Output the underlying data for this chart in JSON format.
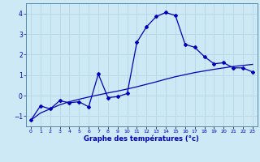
{
  "xlabel": "Graphe des températures (°c)",
  "hours": [
    0,
    1,
    2,
    3,
    4,
    5,
    6,
    7,
    8,
    9,
    10,
    11,
    12,
    13,
    14,
    15,
    16,
    17,
    18,
    19,
    20,
    21,
    22,
    23
  ],
  "temp_line": [
    -1.2,
    -0.5,
    -0.65,
    -0.25,
    -0.35,
    -0.3,
    -0.55,
    1.05,
    -0.1,
    -0.05,
    0.1,
    2.6,
    3.35,
    3.85,
    4.05,
    3.9,
    2.5,
    2.35,
    1.9,
    1.55,
    1.6,
    1.35,
    1.35,
    1.15
  ],
  "trend_line": [
    -1.2,
    -0.85,
    -0.65,
    -0.45,
    -0.3,
    -0.18,
    -0.07,
    0.03,
    0.13,
    0.22,
    0.32,
    0.43,
    0.55,
    0.67,
    0.8,
    0.92,
    1.02,
    1.12,
    1.2,
    1.28,
    1.35,
    1.42,
    1.47,
    1.52
  ],
  "line_color": "#0000bb",
  "bg_color": "#cce9f5",
  "grid_color": "#aad4e8",
  "ylim": [
    -1.5,
    4.5
  ],
  "xlim": [
    -0.5,
    23.5
  ],
  "yticks": [
    -1,
    0,
    1,
    2,
    3,
    4
  ],
  "xtick_labels": [
    "0",
    "1",
    "2",
    "3",
    "4",
    "5",
    "6",
    "7",
    "8",
    "9",
    "10",
    "11",
    "12",
    "13",
    "14",
    "15",
    "16",
    "17",
    "18",
    "19",
    "20",
    "21",
    "22",
    "23"
  ]
}
